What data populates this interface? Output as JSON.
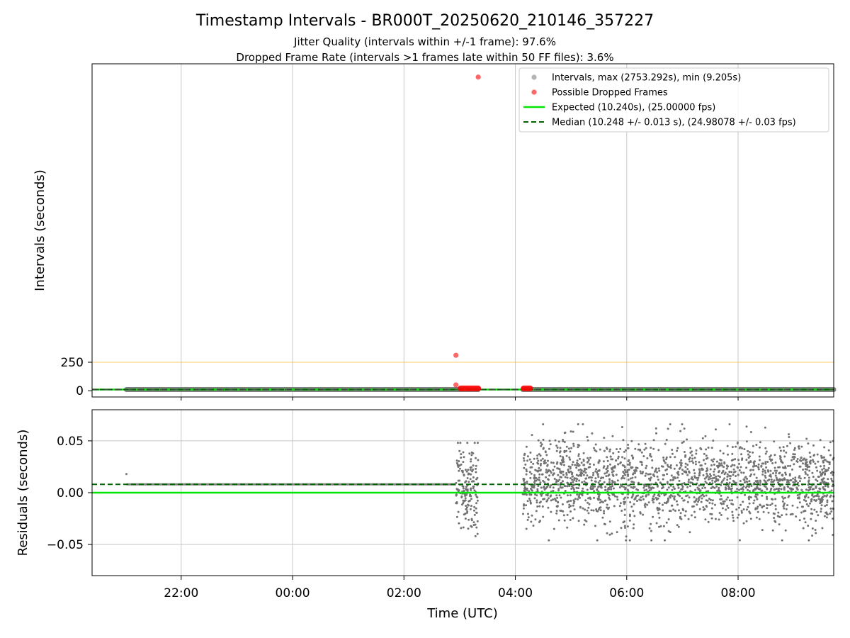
{
  "chart_data": [
    {
      "type": "scatter",
      "title": "Timestamp Intervals - BR000T_20250620_210146_357227",
      "subtitle_1": "Jitter Quality (intervals within +/-1 frame): 97.6%",
      "subtitle_2": "Dropped Frame Rate (intervals >1 frames late within 50 FF files): 3.6%",
      "xlabel": "",
      "ylabel": "Intervals (seconds)",
      "x_ticks": [
        "22:00",
        "00:00",
        "02:00",
        "04:00",
        "06:00",
        "08:00"
      ],
      "y_ticks": [
        "0",
        "250"
      ],
      "x_range": [
        "2025-06-20 20:24",
        "2025-06-21 09:43"
      ],
      "ylim": [
        -55,
        2870
      ],
      "grid": "x",
      "legend_position": "upper right",
      "legend": [
        "Intervals, max (2753.292s), min (9.205s)",
        "Possible Dropped Frames",
        "Expected (10.240s), (25.00000 fps)",
        "Median (10.248 +/- 0.013 s), (24.98078 +/- 0.03 fps)"
      ],
      "reference_lines": {
        "threshold": 250,
        "expected": 10.24,
        "median": 10.248
      },
      "colors": {
        "intervals": "#808080",
        "dropped": "#ff0000",
        "expected": "#00e600",
        "median": "#006400",
        "threshold": "#ffa500"
      },
      "series": [
        {
          "name": "Intervals, max (2753.292s), min (9.205s)",
          "segments": [
            {
              "x_start": "2025-06-20 21:01",
              "x_end": "2025-06-21 02:56",
              "y": 10.25
            },
            {
              "x_start": "2025-06-21 02:56",
              "x_end": "2025-06-21 03:20",
              "y": 10.25
            },
            {
              "x_start": "2025-06-21 04:08",
              "x_end": "2025-06-21 09:43",
              "y": 10.25
            }
          ]
        },
        {
          "name": "Possible Dropped Frames",
          "points": [
            {
              "x": "2025-06-21 03:20",
              "y": 2753.292
            },
            {
              "x": "2025-06-21 02:56",
              "y": 311
            },
            {
              "x": "2025-06-21 02:56",
              "y": 51
            }
          ],
          "clusters": [
            {
              "x_start": "2025-06-21 03:01",
              "x_end": "2025-06-21 03:20",
              "y": 20.5
            },
            {
              "x_start": "2025-06-21 04:09",
              "x_end": "2025-06-21 04:16",
              "y": 20.5
            }
          ]
        }
      ]
    },
    {
      "type": "scatter",
      "xlabel": "Time (UTC)",
      "ylabel": "Residuals (seconds)",
      "x_ticks": [
        "22:00",
        "00:00",
        "02:00",
        "04:00",
        "06:00",
        "08:00"
      ],
      "y_ticks": [
        "0.05",
        "0.00",
        "−0.05"
      ],
      "ylim": [
        -0.08,
        0.08
      ],
      "grid": "both",
      "reference_lines": {
        "expected": 0.0,
        "median": 0.008
      },
      "series": [
        {
          "name": "Residuals",
          "segments": [
            {
              "x_start": "2025-06-20 21:01",
              "x_end": "2025-06-21 02:56",
              "y_center": 0.008,
              "spread": 0.001,
              "outlier": {
                "x": "2025-06-20 21:01",
                "y": 0.018
              }
            },
            {
              "x_start": "2025-06-21 02:56",
              "x_end": "2025-06-21 03:20",
              "y_center": 0.005,
              "spread": 0.025,
              "y_min": -0.042,
              "y_max": 0.048
            },
            {
              "x_start": "2025-06-21 04:08",
              "x_end": "2025-06-21 09:43",
              "y_center": 0.01,
              "spread": 0.022,
              "y_min": -0.046,
              "y_max": 0.066
            }
          ]
        }
      ]
    }
  ]
}
